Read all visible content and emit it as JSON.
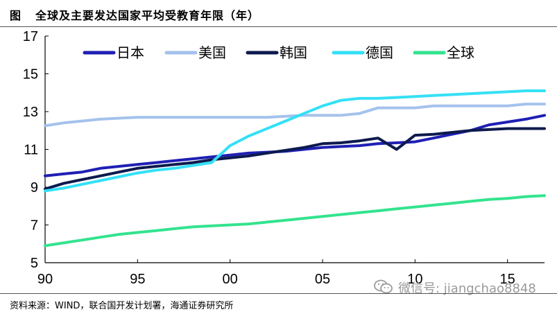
{
  "header": {
    "figure_label": "图",
    "title": "全球及主要发达国家平均受教育年限（年）"
  },
  "footer": {
    "source": "资料来源：WIND，联合国开发计划署，海通证券研究所"
  },
  "watermark": {
    "text": "微信号: jiangchao8848",
    "icon": "wechat-icon"
  },
  "chart_data": {
    "type": "line",
    "title": "全球及主要发达国家平均受教育年限（年）",
    "xlabel": "",
    "ylabel": "",
    "xlim": [
      1990,
      2017
    ],
    "ylim": [
      5,
      17
    ],
    "y_ticks": [
      5,
      7,
      9,
      11,
      13,
      15,
      17
    ],
    "x_ticks": [
      {
        "value": 1990,
        "label": "90"
      },
      {
        "value": 1995,
        "label": "95"
      },
      {
        "value": 2000,
        "label": "00"
      },
      {
        "value": 2005,
        "label": "05"
      },
      {
        "value": 2010,
        "label": "10"
      },
      {
        "value": 2015,
        "label": "15"
      }
    ],
    "grid": false,
    "legend_position": "top",
    "series": [
      {
        "name": "日本",
        "color": "#1f1fb4",
        "x": [
          1990,
          1991,
          1992,
          1993,
          1994,
          1995,
          1996,
          1997,
          1998,
          1999,
          2000,
          2001,
          2002,
          2003,
          2004,
          2005,
          2006,
          2007,
          2008,
          2009,
          2010,
          2011,
          2012,
          2013,
          2014,
          2015,
          2016,
          2017
        ],
        "values": [
          9.6,
          9.7,
          9.8,
          10.0,
          10.1,
          10.2,
          10.3,
          10.4,
          10.5,
          10.6,
          10.7,
          10.8,
          10.85,
          10.9,
          11.0,
          11.1,
          11.15,
          11.2,
          11.3,
          11.35,
          11.4,
          11.6,
          11.8,
          12.0,
          12.3,
          12.45,
          12.6,
          12.8
        ]
      },
      {
        "name": "美国",
        "color": "#a4c2ec",
        "x": [
          1990,
          1991,
          1992,
          1993,
          1994,
          1995,
          1996,
          1997,
          1998,
          1999,
          2000,
          2001,
          2002,
          2003,
          2004,
          2005,
          2006,
          2007,
          2008,
          2009,
          2010,
          2011,
          2012,
          2013,
          2014,
          2015,
          2016,
          2017
        ],
        "values": [
          12.25,
          12.4,
          12.5,
          12.6,
          12.65,
          12.7,
          12.7,
          12.7,
          12.7,
          12.7,
          12.7,
          12.7,
          12.7,
          12.75,
          12.8,
          12.8,
          12.8,
          12.9,
          13.2,
          13.2,
          13.2,
          13.3,
          13.3,
          13.3,
          13.3,
          13.3,
          13.4,
          13.4
        ]
      },
      {
        "name": "韩国",
        "color": "#0d1a4e",
        "x": [
          1990,
          1991,
          1992,
          1993,
          1994,
          1995,
          1996,
          1997,
          1998,
          1999,
          2000,
          2001,
          2002,
          2003,
          2004,
          2005,
          2006,
          2007,
          2008,
          2009,
          2010,
          2011,
          2012,
          2013,
          2014,
          2015,
          2016,
          2017
        ],
        "values": [
          8.9,
          9.2,
          9.4,
          9.6,
          9.8,
          10.0,
          10.1,
          10.2,
          10.3,
          10.45,
          10.55,
          10.65,
          10.8,
          10.95,
          11.1,
          11.3,
          11.35,
          11.45,
          11.6,
          11.0,
          11.75,
          11.8,
          11.9,
          12.0,
          12.05,
          12.1,
          12.1,
          12.1
        ]
      },
      {
        "name": "德国",
        "color": "#34e0f6",
        "x": [
          1990,
          1991,
          1992,
          1993,
          1994,
          1995,
          1996,
          1997,
          1998,
          1999,
          2000,
          2001,
          2002,
          2003,
          2004,
          2005,
          2006,
          2007,
          2008,
          2009,
          2010,
          2011,
          2012,
          2013,
          2014,
          2015,
          2016,
          2017
        ],
        "values": [
          8.8,
          8.95,
          9.15,
          9.35,
          9.55,
          9.75,
          9.9,
          10.0,
          10.15,
          10.3,
          11.2,
          11.7,
          12.1,
          12.5,
          12.9,
          13.3,
          13.6,
          13.7,
          13.7,
          13.75,
          13.8,
          13.85,
          13.9,
          13.95,
          14.0,
          14.05,
          14.1,
          14.1
        ]
      },
      {
        "name": "全球",
        "color": "#33e38e",
        "x": [
          1990,
          1991,
          1992,
          1993,
          1994,
          1995,
          1996,
          1997,
          1998,
          1999,
          2000,
          2001,
          2002,
          2003,
          2004,
          2005,
          2006,
          2007,
          2008,
          2009,
          2010,
          2011,
          2012,
          2013,
          2014,
          2015,
          2016,
          2017
        ],
        "values": [
          5.9,
          6.05,
          6.2,
          6.35,
          6.5,
          6.6,
          6.7,
          6.8,
          6.9,
          6.95,
          7.0,
          7.05,
          7.15,
          7.25,
          7.35,
          7.45,
          7.55,
          7.65,
          7.75,
          7.85,
          7.95,
          8.05,
          8.15,
          8.25,
          8.35,
          8.4,
          8.5,
          8.55
        ]
      }
    ]
  }
}
